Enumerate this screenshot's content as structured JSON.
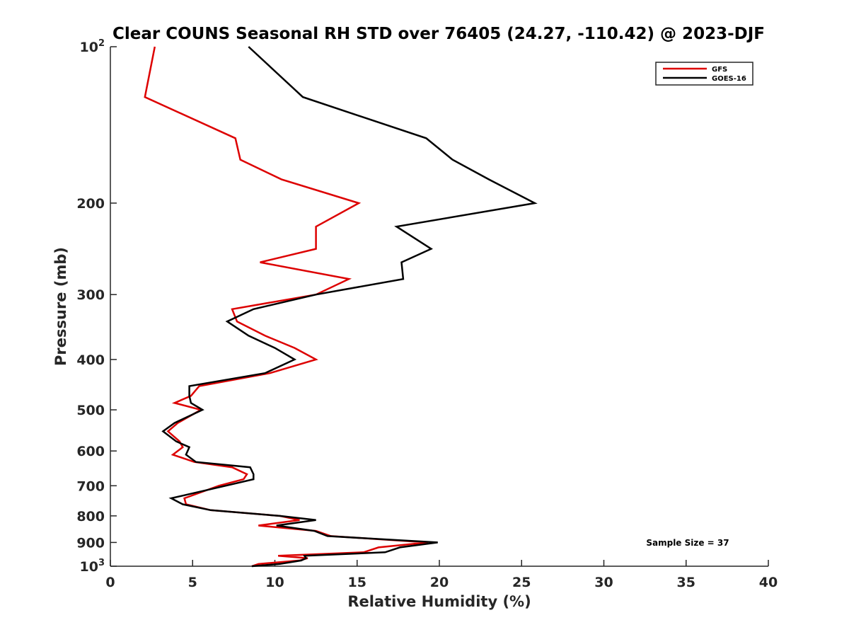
{
  "chart_data": {
    "type": "line",
    "title": "Clear COUNS Seasonal RH STD over 76405 (24.27, -110.42) @ 2023-DJF",
    "xlabel": "Relative Humidity (%)",
    "ylabel": "Pressure (mb)",
    "xlim": [
      0,
      40
    ],
    "ylim": [
      100,
      1000
    ],
    "yscale": "log",
    "y_reversed": true,
    "grid": false,
    "x_ticks": [
      0,
      5,
      10,
      15,
      20,
      25,
      30,
      35,
      40
    ],
    "x_tick_labels": [
      "0",
      "5",
      "10",
      "15",
      "20",
      "25",
      "30",
      "35",
      "40"
    ],
    "y_ticks": [
      100,
      200,
      300,
      400,
      500,
      600,
      700,
      800,
      900,
      1000
    ],
    "y_tick_labels": [
      {
        "base": "10",
        "exp": "2"
      },
      {
        "base": "200",
        "exp": ""
      },
      {
        "base": "300",
        "exp": ""
      },
      {
        "base": "400",
        "exp": ""
      },
      {
        "base": "500",
        "exp": ""
      },
      {
        "base": "600",
        "exp": ""
      },
      {
        "base": "700",
        "exp": ""
      },
      {
        "base": "800",
        "exp": ""
      },
      {
        "base": "900",
        "exp": ""
      },
      {
        "base": "10",
        "exp": "3"
      }
    ],
    "legend_position": "top-right",
    "series": [
      {
        "name": "GFS",
        "color": "#dd0000",
        "points": [
          [
            2.7,
            100
          ],
          [
            2.1,
            125
          ],
          [
            7.6,
            150
          ],
          [
            7.9,
            165
          ],
          [
            10.4,
            180
          ],
          [
            15.1,
            200
          ],
          [
            12.5,
            222
          ],
          [
            12.5,
            245
          ],
          [
            9.1,
            260
          ],
          [
            14.5,
            280
          ],
          [
            12.5,
            300
          ],
          [
            7.4,
            320
          ],
          [
            7.7,
            338
          ],
          [
            9.4,
            360
          ],
          [
            11.2,
            380
          ],
          [
            12.5,
            400
          ],
          [
            9.7,
            425
          ],
          [
            5.4,
            450
          ],
          [
            4.9,
            470
          ],
          [
            3.9,
            485
          ],
          [
            5.5,
            500
          ],
          [
            4.1,
            530
          ],
          [
            3.5,
            550
          ],
          [
            4.2,
            575
          ],
          [
            4.4,
            590
          ],
          [
            3.8,
            610
          ],
          [
            5.1,
            630
          ],
          [
            7.4,
            645
          ],
          [
            8.3,
            665
          ],
          [
            8.1,
            680
          ],
          [
            6.6,
            700
          ],
          [
            4.5,
            740
          ],
          [
            4.6,
            760
          ],
          [
            6.1,
            780
          ],
          [
            10.3,
            800
          ],
          [
            11.5,
            815
          ],
          [
            9.0,
            835
          ],
          [
            12.5,
            855
          ],
          [
            13.4,
            875
          ],
          [
            19.3,
            900
          ],
          [
            16.3,
            920
          ],
          [
            15.4,
            940
          ],
          [
            10.2,
            955
          ],
          [
            12.0,
            965
          ],
          [
            11.5,
            975
          ],
          [
            9.0,
            990
          ],
          [
            8.6,
            1000
          ]
        ]
      },
      {
        "name": "GOES-16",
        "color": "#000000",
        "points": [
          [
            8.4,
            100
          ],
          [
            11.7,
            125
          ],
          [
            19.2,
            150
          ],
          [
            20.8,
            165
          ],
          [
            23.0,
            180
          ],
          [
            25.8,
            200
          ],
          [
            17.4,
            222
          ],
          [
            19.5,
            245
          ],
          [
            17.7,
            260
          ],
          [
            17.8,
            280
          ],
          [
            12.5,
            300
          ],
          [
            8.7,
            320
          ],
          [
            7.1,
            338
          ],
          [
            8.4,
            360
          ],
          [
            10.0,
            380
          ],
          [
            11.2,
            400
          ],
          [
            9.4,
            425
          ],
          [
            4.8,
            450
          ],
          [
            4.8,
            470
          ],
          [
            4.9,
            485
          ],
          [
            5.6,
            500
          ],
          [
            3.9,
            530
          ],
          [
            3.2,
            550
          ],
          [
            4.0,
            575
          ],
          [
            4.8,
            590
          ],
          [
            4.6,
            610
          ],
          [
            5.2,
            630
          ],
          [
            8.5,
            645
          ],
          [
            8.7,
            665
          ],
          [
            8.7,
            680
          ],
          [
            7.0,
            700
          ],
          [
            3.7,
            740
          ],
          [
            4.4,
            760
          ],
          [
            6.1,
            780
          ],
          [
            10.3,
            800
          ],
          [
            12.5,
            815
          ],
          [
            10.1,
            835
          ],
          [
            12.4,
            855
          ],
          [
            13.2,
            875
          ],
          [
            19.9,
            900
          ],
          [
            17.6,
            920
          ],
          [
            16.7,
            940
          ],
          [
            11.8,
            955
          ],
          [
            11.9,
            965
          ],
          [
            11.6,
            975
          ],
          [
            10.3,
            990
          ],
          [
            8.6,
            1000
          ]
        ]
      }
    ],
    "annotation": "Sample Size = 37"
  }
}
